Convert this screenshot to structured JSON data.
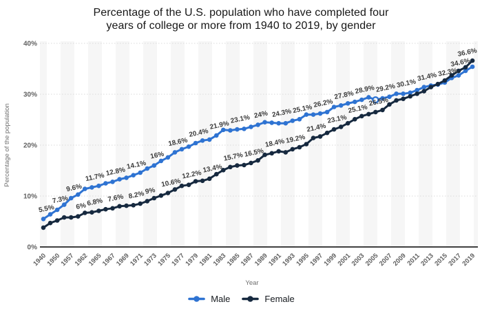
{
  "title": {
    "line1": "Percentage of the U.S. population who have completed four",
    "line2": "years of college or more from 1940 to 2019, by gender"
  },
  "chart_data": {
    "type": "line",
    "title": "Percentage of the U.S. population who have completed four years of college or more from 1940 to 2019, by gender",
    "xlabel": "Year",
    "ylabel": "Percentage of the population",
    "ylim": [
      0,
      40
    ],
    "y_ticks": [
      "0%",
      "10%",
      "20%",
      "30%",
      "40%"
    ],
    "grid": "dotted horizontal",
    "band_color": "#f3f3f3",
    "x_tick_labels": [
      "1940",
      "1950",
      "1957",
      "1962",
      "1965",
      "1967",
      "1969",
      "1971",
      "1973",
      "1975",
      "1977",
      "1979",
      "1981",
      "1983",
      "1985",
      "1987",
      "1989",
      "1991",
      "1993",
      "1995",
      "1997",
      "1999",
      "2001",
      "2003",
      "2005",
      "2007",
      "2009",
      "2011",
      "2013",
      "2015",
      "2017",
      "2019"
    ],
    "years": [
      1940,
      1947,
      1950,
      1952,
      1957,
      1959,
      1962,
      1964,
      1965,
      1966,
      1967,
      1968,
      1969,
      1970,
      1971,
      1972,
      1973,
      1974,
      1975,
      1976,
      1977,
      1978,
      1979,
      1980,
      1981,
      1982,
      1983,
      1984,
      1985,
      1986,
      1987,
      1988,
      1989,
      1990,
      1991,
      1992,
      1993,
      1994,
      1995,
      1996,
      1997,
      1998,
      1999,
      2000,
      2001,
      2002,
      2003,
      2004,
      2005,
      2006,
      2007,
      2008,
      2009,
      2010,
      2011,
      2012,
      2013,
      2014,
      2015,
      2016,
      2017,
      2018,
      2019
    ],
    "series": [
      {
        "name": "Male",
        "color": "#2e73d2",
        "values": [
          5.5,
          6.4,
          7.3,
          8.3,
          9.6,
          10.3,
          11.4,
          11.7,
          12.0,
          12.5,
          12.8,
          13.3,
          13.6,
          14.1,
          14.6,
          15.4,
          16.0,
          16.9,
          17.6,
          18.6,
          19.2,
          19.7,
          20.4,
          20.9,
          21.1,
          21.9,
          23.0,
          22.9,
          23.1,
          23.2,
          23.6,
          24.0,
          24.5,
          24.4,
          24.3,
          24.3,
          24.8,
          25.1,
          26.0,
          26.0,
          26.2,
          26.5,
          27.5,
          27.8,
          28.2,
          28.5,
          28.9,
          29.4,
          28.9,
          29.2,
          29.5,
          30.1,
          30.1,
          30.3,
          30.8,
          31.4,
          31.7,
          31.9,
          32.3,
          33.2,
          33.7,
          34.6,
          35.4
        ],
        "labels": [
          {
            "year": 1940,
            "text": "5.5%"
          },
          {
            "year": 1950,
            "text": "7.3%"
          },
          {
            "year": 1957,
            "text": "9.6%"
          },
          {
            "year": 1964,
            "text": "11.7%"
          },
          {
            "year": 1967,
            "text": "12.8%"
          },
          {
            "year": 1970,
            "text": "14.1%"
          },
          {
            "year": 1973,
            "text": "16%"
          },
          {
            "year": 1976,
            "text": "18.6%"
          },
          {
            "year": 1979,
            "text": "20.4%"
          },
          {
            "year": 1982,
            "text": "21.9%"
          },
          {
            "year": 1985,
            "text": "23.1%"
          },
          {
            "year": 1988,
            "text": "24%"
          },
          {
            "year": 1991,
            "text": "24.3%"
          },
          {
            "year": 1994,
            "text": "25.1%"
          },
          {
            "year": 1997,
            "text": "26.2%"
          },
          {
            "year": 2000,
            "text": "27.8%"
          },
          {
            "year": 2003,
            "text": "28.9%"
          },
          {
            "year": 2006,
            "text": "29.2%"
          },
          {
            "year": 2009,
            "text": "30.1%"
          },
          {
            "year": 2012,
            "text": "31.4%"
          },
          {
            "year": 2015,
            "text": "32.3%"
          },
          {
            "year": 2018,
            "text": "34.6%"
          }
        ]
      },
      {
        "name": "Female",
        "color": "#16293f",
        "values": [
          3.8,
          4.7,
          5.2,
          5.8,
          5.8,
          6.0,
          6.7,
          6.8,
          7.1,
          7.4,
          7.6,
          8.0,
          8.1,
          8.2,
          8.5,
          9.0,
          9.6,
          10.1,
          10.6,
          11.3,
          12.0,
          12.2,
          12.9,
          13.0,
          13.4,
          14.3,
          15.1,
          15.7,
          16.0,
          16.1,
          16.5,
          17.0,
          18.1,
          18.4,
          18.8,
          18.6,
          19.2,
          19.6,
          20.2,
          21.4,
          21.7,
          22.4,
          23.1,
          23.6,
          24.3,
          25.1,
          25.7,
          26.1,
          26.5,
          26.9,
          28.0,
          28.8,
          29.1,
          29.6,
          30.1,
          30.6,
          31.4,
          32.0,
          32.7,
          33.7,
          34.6,
          35.3,
          36.6
        ],
        "labels": [
          {
            "year": 1959,
            "text": "6%"
          },
          {
            "year": 1964,
            "text": "6.8%"
          },
          {
            "year": 1967,
            "text": "7.6%"
          },
          {
            "year": 1970,
            "text": "8.2%"
          },
          {
            "year": 1972,
            "text": "9%"
          },
          {
            "year": 1975,
            "text": "10.6%"
          },
          {
            "year": 1978,
            "text": "12.2%"
          },
          {
            "year": 1981,
            "text": "13.4%"
          },
          {
            "year": 1984,
            "text": "15.7%"
          },
          {
            "year": 1987,
            "text": "16.5%"
          },
          {
            "year": 1990,
            "text": "18.4%"
          },
          {
            "year": 1993,
            "text": "19.2%"
          },
          {
            "year": 1996,
            "text": "21.4%"
          },
          {
            "year": 1999,
            "text": "23.1%"
          },
          {
            "year": 2002,
            "text": "25.1%"
          },
          {
            "year": 2005,
            "text": "26.5%"
          },
          {
            "year": 2019,
            "text": "36.6%"
          }
        ]
      }
    ],
    "highlight": {
      "series": "Male",
      "year": 2005
    },
    "legend_position": "bottom center"
  },
  "legend": {
    "items": [
      {
        "label": "Male",
        "color": "#2e73d2"
      },
      {
        "label": "Female",
        "color": "#16293f"
      }
    ]
  }
}
